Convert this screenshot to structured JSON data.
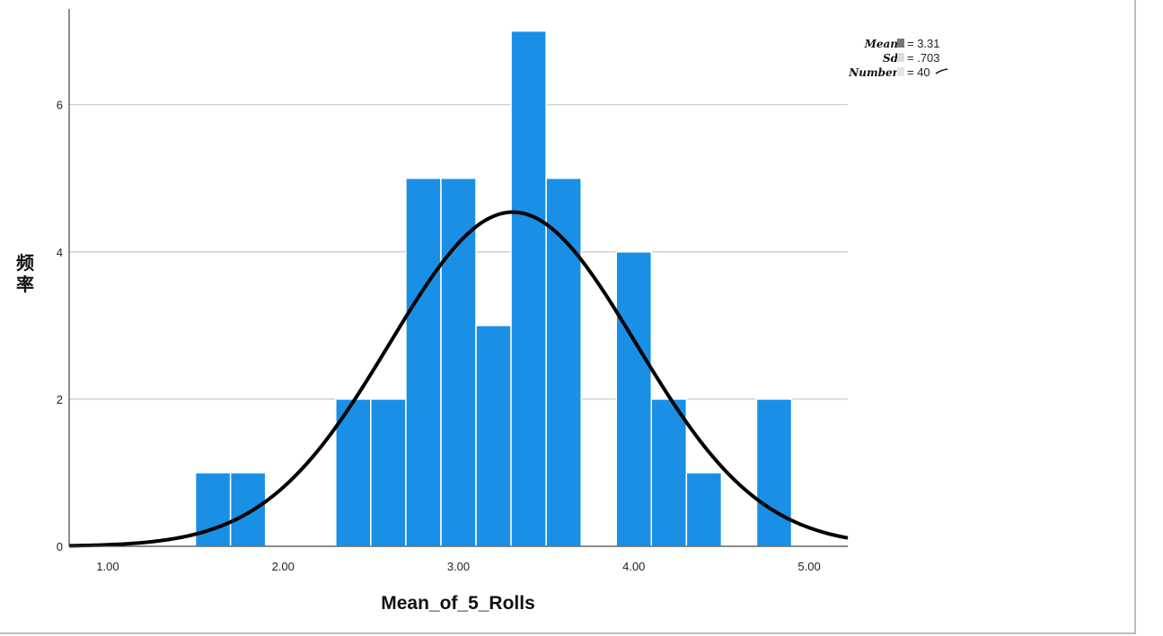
{
  "chart_data": {
    "type": "bar",
    "subtype": "histogram",
    "title": "",
    "xlabel": "Mean_of_5_Rolls",
    "ylabel": "频率",
    "xlim": [
      0.78,
      5.22
    ],
    "ylim": [
      0,
      7.3
    ],
    "x_ticks": [
      1,
      2,
      3,
      4,
      5
    ],
    "x_tick_labels": [
      "1.00",
      "2.00",
      "3.00",
      "4.00",
      "5.00"
    ],
    "y_ticks": [
      0,
      2,
      4,
      6
    ],
    "y_tick_labels": [
      "0",
      "2",
      "4",
      "6"
    ],
    "grid": "horizontal",
    "bins": [
      {
        "start": 1.5,
        "end": 1.7,
        "count": 1
      },
      {
        "start": 1.7,
        "end": 1.9,
        "count": 1
      },
      {
        "start": 2.3,
        "end": 2.5,
        "count": 2
      },
      {
        "start": 2.5,
        "end": 2.7,
        "count": 2
      },
      {
        "start": 2.7,
        "end": 2.9,
        "count": 5
      },
      {
        "start": 2.9,
        "end": 3.1,
        "count": 5
      },
      {
        "start": 3.1,
        "end": 3.3,
        "count": 3
      },
      {
        "start": 3.3,
        "end": 3.5,
        "count": 7
      },
      {
        "start": 3.5,
        "end": 3.7,
        "count": 5
      },
      {
        "start": 3.9,
        "end": 4.1,
        "count": 4
      },
      {
        "start": 4.1,
        "end": 4.3,
        "count": 2
      },
      {
        "start": 4.3,
        "end": 4.5,
        "count": 1
      },
      {
        "start": 4.7,
        "end": 4.9,
        "count": 2
      }
    ],
    "normal_curve": {
      "mean": 3.31,
      "sd": 0.703,
      "n": 40,
      "bin_width": 0.2
    },
    "stats": [
      {
        "name": "Mean",
        "value": "= 3.31"
      },
      {
        "name": "Sd",
        "value": "= .703"
      },
      {
        "name": "Number",
        "value": "= 40"
      }
    ],
    "colors": {
      "bar": "#1a8fe6",
      "bar_edge": "#ffffff",
      "curve": "#000000",
      "grid": "#c8c8c8"
    }
  }
}
